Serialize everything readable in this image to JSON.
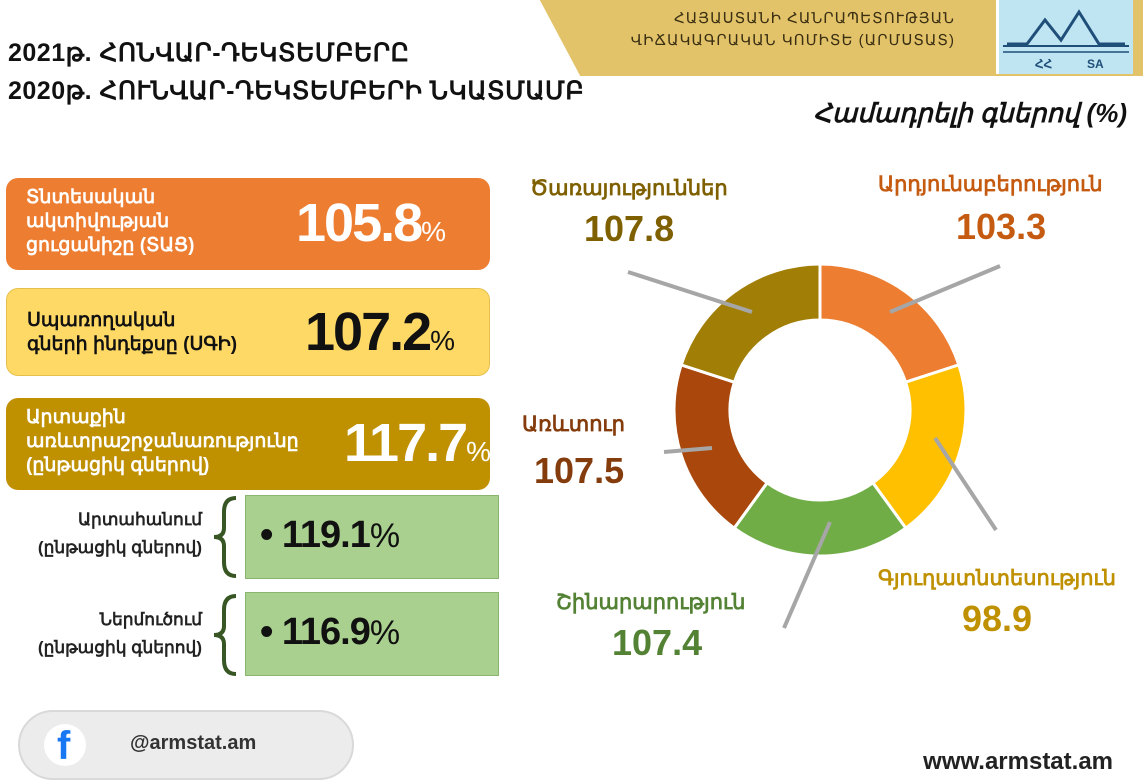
{
  "header": {
    "org_line1": "ՀԱՅԱՍՏԱՆԻ ՀԱՆՐԱՊԵՏՈՒԹՅԱՆ",
    "org_line2": "ՎԻՃԱԿԱԳՐԱԿԱՆ ԿՈՄԻՏԵ (ԱՐՄՍՏԱՏ)",
    "logo_left": "ՀՀ",
    "logo_right": "SA",
    "title_line1": "2021թ. ՀՈՆՎԱՐ-ԴԵԿՏԵՄԲԵՐԸ",
    "title_line2": "2020թ. ՀՈՒՆՎԱՐ-ԴԵԿՏԵՄԲԵՐԻ ՆԿԱՏՄԱՄԲ",
    "subtitle": "Համադրելի գներով (%)"
  },
  "indicators": [
    {
      "label_l1": "Տնտեսական",
      "label_l2": "ակտիվության",
      "label_l3": "ցուցանիշը (ՏԱՑ)",
      "value": "105.8",
      "pct": "%",
      "color": "#ed7d31"
    },
    {
      "label_l1": "Սպառողական",
      "label_l2": "գների ինդեքսը (ՍԳԻ)",
      "value": "107.2",
      "pct": "%",
      "color": "#ffd966"
    },
    {
      "label_l1": "Արտաքին",
      "label_l2": "առևտրաշրջանառությունը",
      "label_l3": "(ընթացիկ գներով)",
      "value": "117.7",
      "pct": "%",
      "color": "#bf9000"
    }
  ],
  "sub_indicators": [
    {
      "label_l1": "Արտահանում",
      "label_l2": "(ընթացիկ գներով)",
      "bullet": "•",
      "value": "119.1",
      "pct": "%"
    },
    {
      "label_l1": "Ներմուծում",
      "label_l2": "(ընթացիկ գներով)",
      "bullet": "•",
      "value": "116.9",
      "pct": "%"
    }
  ],
  "footer": {
    "fb_letter": "f",
    "handle": "@armstat.am",
    "website": "www.armstat.am"
  },
  "chart_data": {
    "type": "pie",
    "donut": true,
    "categories": [
      "Արդյունաբերություն",
      "Գյուղատնտեսություն",
      "Շինարարություն",
      "Առևտուր",
      "Ծառայություններ"
    ],
    "values": [
      103.3,
      98.9,
      107.4,
      107.5,
      107.8
    ],
    "value_labels": [
      "103.3",
      "98.9",
      "107.4",
      "107.5",
      "107.8"
    ],
    "colors": [
      "#ed7d31",
      "#ffc000",
      "#70ad47",
      "#a9470c",
      "#a17e06"
    ],
    "label_colors": [
      "#c55a11",
      "#bf9000",
      "#548235",
      "#843c0c",
      "#7f6000"
    ],
    "segment_shares": [
      0.2,
      0.2,
      0.2,
      0.2,
      0.2
    ],
    "legend": "none"
  }
}
